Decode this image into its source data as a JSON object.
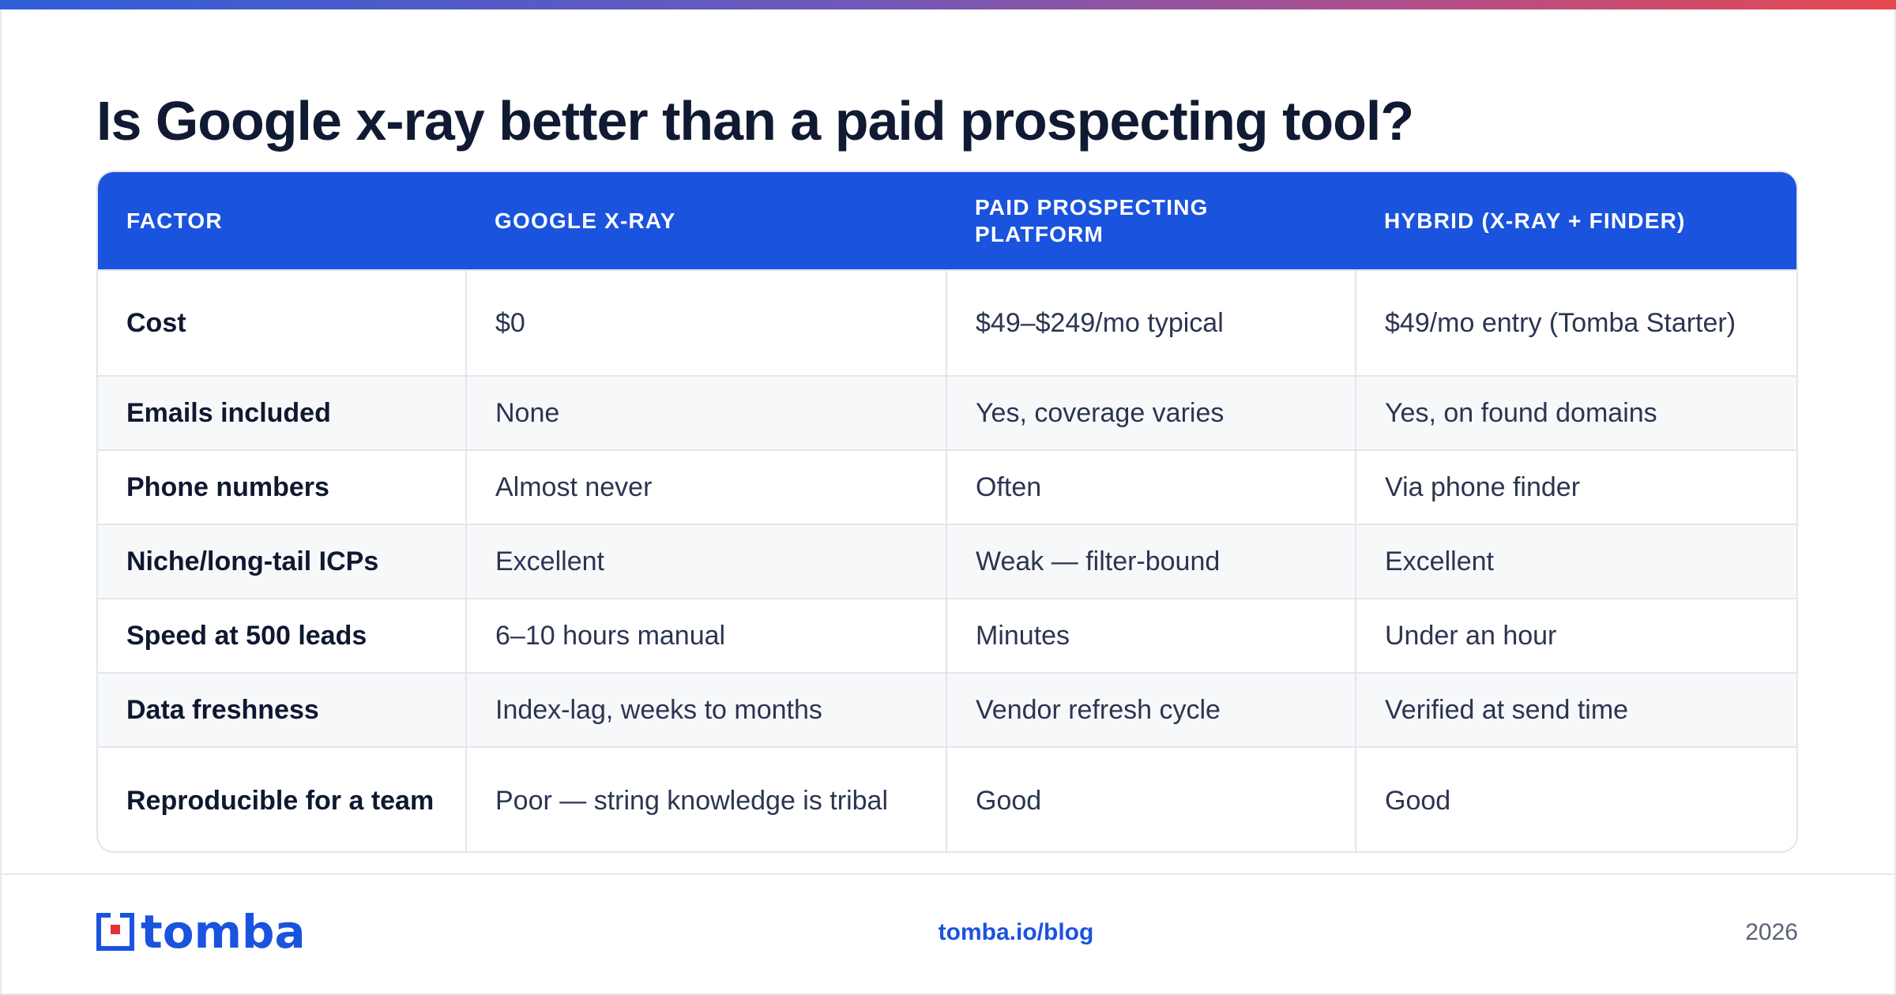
{
  "headline": "Is Google x-ray better than a paid prospecting tool?",
  "table": {
    "headers": [
      "FACTOR",
      "GOOGLE X-RAY",
      "PAID PROSPECTING PLATFORM",
      "HYBRID (X-RAY + FINDER)"
    ],
    "rows": [
      [
        "Cost",
        "$0",
        "$49–$249/mo typical",
        "$49/mo entry (Tomba Starter)"
      ],
      [
        "Emails included",
        "None",
        "Yes, coverage varies",
        "Yes, on found domains"
      ],
      [
        "Phone numbers",
        "Almost never",
        "Often",
        "Via phone finder"
      ],
      [
        "Niche/long-tail ICPs",
        "Excellent",
        "Weak — filter-bound",
        "Excellent"
      ],
      [
        "Speed at 500 leads",
        "6–10 hours manual",
        "Minutes",
        "Under an hour"
      ],
      [
        "Data freshness",
        "Index-lag, weeks to months",
        "Vendor refresh cycle",
        "Verified at send time"
      ],
      [
        "Reproducible for a team",
        "Poor — string knowledge is tribal",
        "Good",
        "Good"
      ]
    ]
  },
  "footer": {
    "logo_text": "tomba",
    "link": "tomba.io/blog",
    "year": "2026"
  },
  "colors": {
    "header_bg": "#1a53de",
    "brand": "#1a53de",
    "logo_red": "#e0323c",
    "alt_row": "#f7f8fa"
  }
}
